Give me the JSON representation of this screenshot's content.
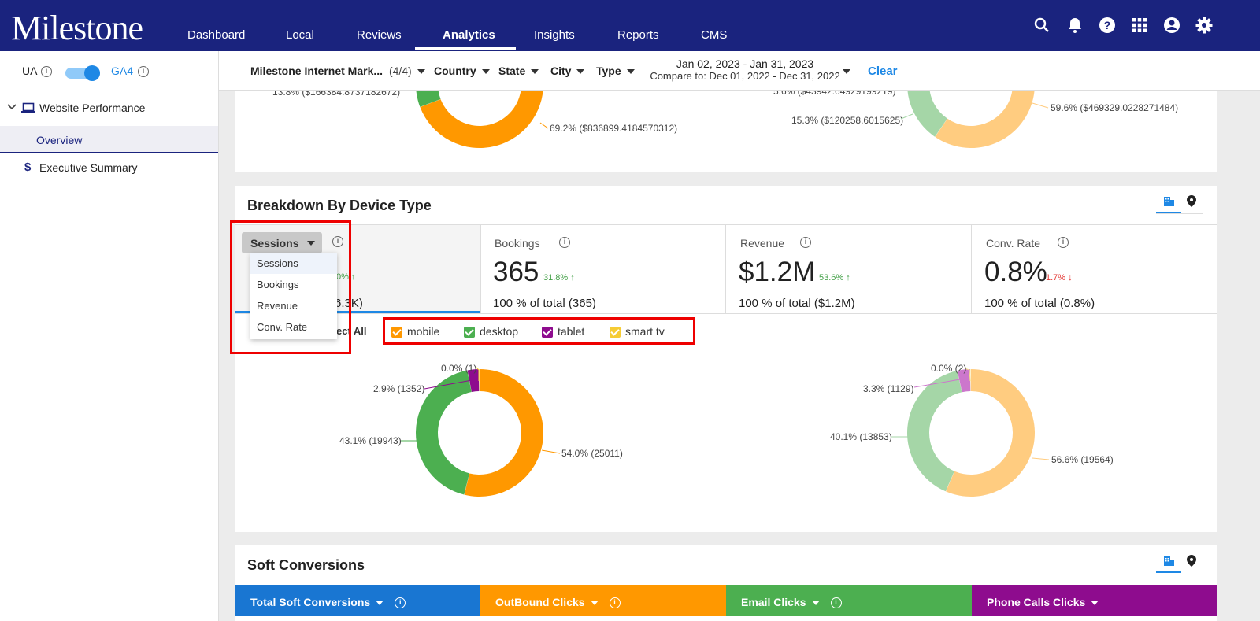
{
  "nav": {
    "logo": "Milestone",
    "links": [
      "Dashboard",
      "Local",
      "Reviews",
      "Analytics",
      "Insights",
      "Reports",
      "CMS"
    ],
    "active": "Analytics"
  },
  "sidebar": {
    "ua": "UA",
    "ga4": "GA4",
    "section": "Website Performance",
    "items": [
      "Overview",
      "Executive Summary"
    ]
  },
  "filters": {
    "account": "Milestone Internet Mark...",
    "account_count": "(4/4)",
    "country": "Country",
    "state": "State",
    "city": "City",
    "type": "Type",
    "date": "Jan 02, 2023 - Jan 31, 2023",
    "compare": "Compare to: Dec 01, 2022 - Dec 31, 2022",
    "clear": "Clear"
  },
  "top_card": {
    "left_labels": [
      "13.8% ($166384.8737182672)",
      "69.2% ($836899.4184570312)"
    ],
    "right_labels": [
      "5.6% ($43942.64929199219)",
      "15.3% ($120258.6015625)",
      "59.6% ($469329.0228271484)"
    ]
  },
  "device": {
    "title": "Breakdown By Device Type",
    "dropdown_selected": "Sessions",
    "dropdown_options": [
      "Sessions",
      "Bookings",
      "Revenue",
      "Conv. Rate"
    ],
    "sessions_partial": {
      "change_partial": "0% ↑",
      "total_partial": "6.3K)"
    },
    "metrics": [
      {
        "label": "Bookings",
        "value": "365",
        "change": "31.8% ↑",
        "total": "100 % of total (365)"
      },
      {
        "label": "Revenue",
        "value": "$1.2M",
        "change": "53.6% ↑",
        "total": "100 % of total ($1.2M)"
      },
      {
        "label": "Conv. Rate",
        "value": "0.8%",
        "change": "1.7% ↓",
        "total": "100 % of total (0.8%)"
      }
    ],
    "select_all_partial": "ect All",
    "legend": [
      {
        "name": "mobile",
        "color": "#ff9800"
      },
      {
        "name": "desktop",
        "color": "#4caf50"
      },
      {
        "name": "tablet",
        "color": "#8e0c8e"
      },
      {
        "name": "smart tv",
        "color": "#f6cc34"
      }
    ],
    "donut_left": [
      {
        "name": "mobile",
        "pct": 54.0,
        "label": "54.0% (25011)",
        "color": "#ff9800"
      },
      {
        "name": "desktop",
        "pct": 43.1,
        "label": "43.1% (19943)",
        "color": "#4caf50"
      },
      {
        "name": "tablet",
        "pct": 2.9,
        "label": "2.9% (1352)",
        "color": "#8e0c8e"
      },
      {
        "name": "smart tv",
        "pct": 0.0,
        "label": "0.0% (1)",
        "color": "#f6cc34"
      }
    ],
    "donut_right": [
      {
        "name": "mobile",
        "pct": 56.6,
        "label": "56.6% (19564)",
        "color": "#ffcc80"
      },
      {
        "name": "desktop",
        "pct": 40.1,
        "label": "40.1% (13853)",
        "color": "#a5d6a7"
      },
      {
        "name": "tablet",
        "pct": 3.3,
        "label": "3.3% (1129)",
        "color": "#cc77cc"
      },
      {
        "name": "smart tv",
        "pct": 0.0,
        "label": "0.0% (2)",
        "color": "#f6e08a"
      }
    ]
  },
  "soft": {
    "title": "Soft Conversions",
    "tabs": [
      {
        "label": "Total Soft Conversions",
        "color": "#1976d2"
      },
      {
        "label": "OutBound Clicks",
        "color": "#ff9800"
      },
      {
        "label": "Email Clicks",
        "color": "#4caf50"
      },
      {
        "label": "Phone Calls Clicks",
        "color": "#8e0c8e"
      }
    ]
  }
}
